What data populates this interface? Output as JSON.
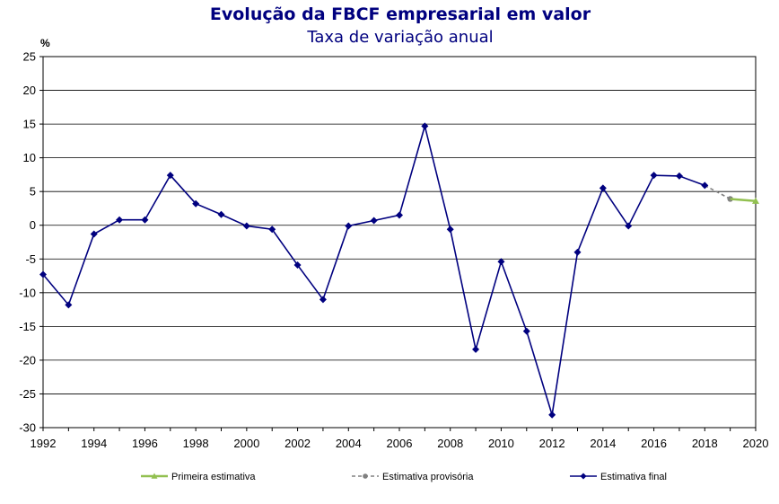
{
  "chart_data": {
    "type": "line",
    "title": "Evolução da FBCF empresarial em valor",
    "subtitle": "Taxa de variação anual",
    "ylabel": "%",
    "xlim": [
      1992,
      2020
    ],
    "ylim": [
      -30,
      25
    ],
    "y_ticks": [
      "25",
      "20",
      "15",
      "10",
      "5",
      "0",
      "-5",
      "-10",
      "-15",
      "-20",
      "-25",
      "-30"
    ],
    "x_ticks": [
      "1992",
      "1994",
      "1996",
      "1998",
      "2000",
      "2002",
      "2004",
      "2006",
      "2008",
      "2010",
      "2012",
      "2014",
      "2016",
      "2018",
      "2020"
    ],
    "grid": "horizontal",
    "legend_position": "bottom",
    "series": [
      {
        "name": "Primeira estimativa",
        "color": "#92c050",
        "marker": "triangle",
        "dash": "solid",
        "x": [
          2019,
          2020
        ],
        "y": [
          3.9,
          3.6
        ]
      },
      {
        "name": "Estimativa provisória",
        "color": "#808080",
        "marker": "circle",
        "dash": "dashed",
        "x": [
          2018,
          2019
        ],
        "y": [
          5.9,
          3.9
        ]
      },
      {
        "name": "Estimativa final",
        "color": "#00007f",
        "marker": "diamond",
        "dash": "solid",
        "x": [
          1992,
          1993,
          1994,
          1995,
          1996,
          1997,
          1998,
          1999,
          2000,
          2001,
          2002,
          2003,
          2004,
          2005,
          2006,
          2007,
          2008,
          2009,
          2010,
          2011,
          2012,
          2013,
          2014,
          2015,
          2016,
          2017,
          2018
        ],
        "y": [
          -7.3,
          -11.8,
          -1.3,
          0.8,
          0.8,
          7.4,
          3.2,
          1.6,
          -0.1,
          -0.6,
          -5.9,
          -11.0,
          -0.1,
          0.7,
          1.5,
          14.7,
          -0.6,
          -18.4,
          -5.4,
          -15.7,
          -28.1,
          -4.0,
          5.5,
          -0.1,
          7.4,
          7.3,
          5.9
        ]
      }
    ]
  }
}
